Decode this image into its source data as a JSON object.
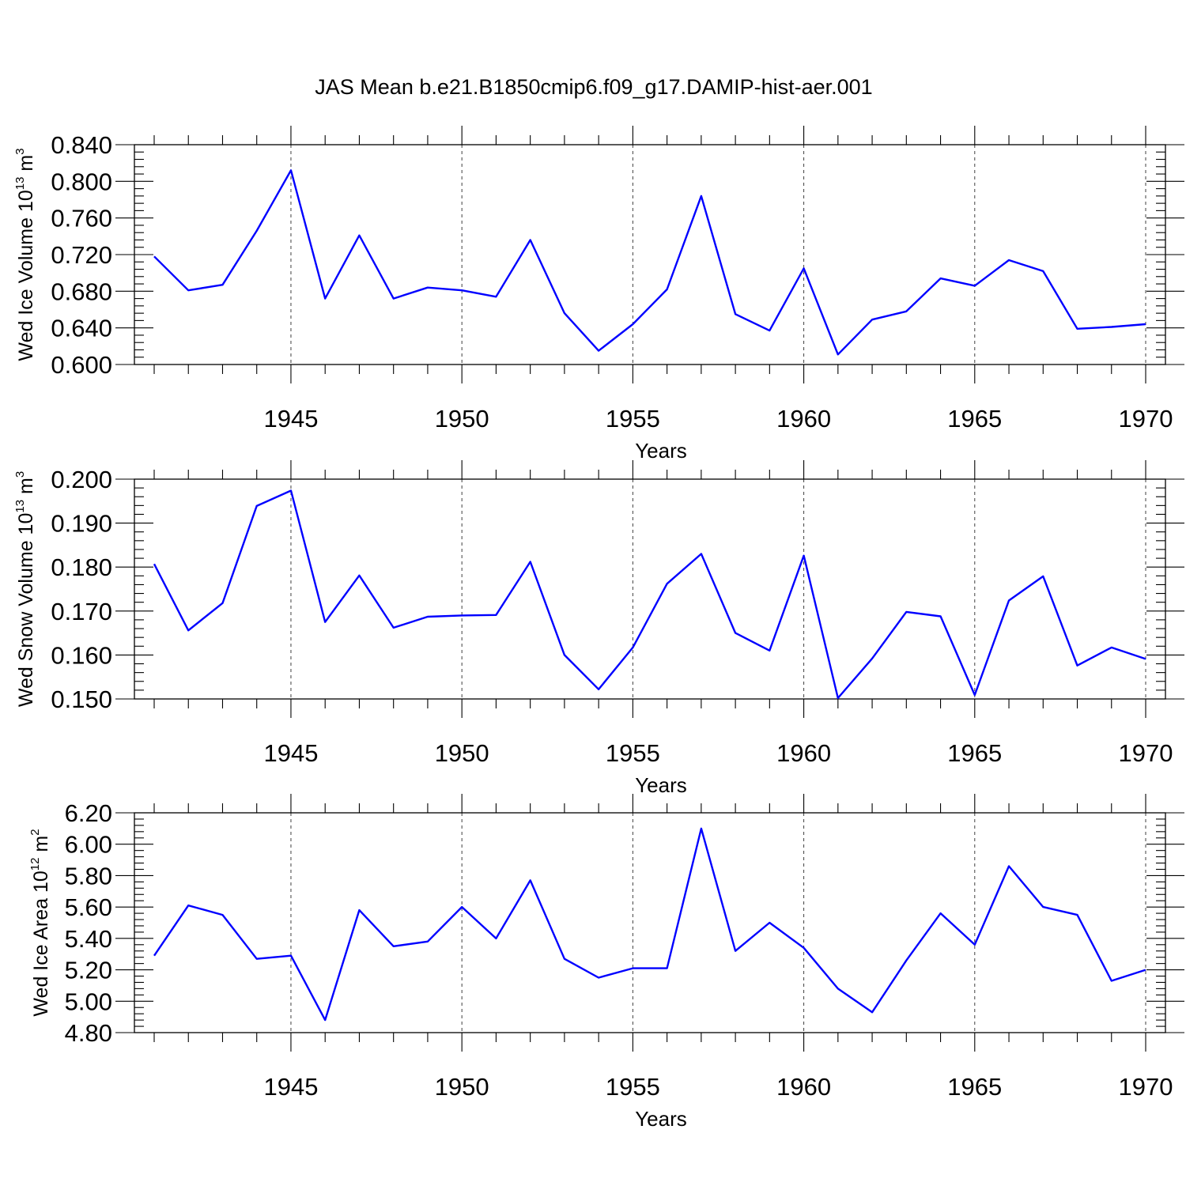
{
  "figure": {
    "title": "JAS Mean b.e21.B1850cmip6.f09_g17.DAMIP-hist-aer.001",
    "line_color": "#0000ff"
  },
  "chart_data": [
    {
      "type": "line",
      "ylabel": {
        "main": "Wed Ice Volume 10",
        "sup": "13",
        "unit": " m",
        "unit_sup": "3"
      },
      "xlabel": "Years",
      "xlim": [
        1941,
        1970
      ],
      "ylim": [
        0.6,
        0.84
      ],
      "yticks": [
        0.6,
        0.64,
        0.68,
        0.72,
        0.76,
        0.8,
        0.84
      ],
      "ytick_labels": [
        "0.600",
        "0.640",
        "0.680",
        "0.720",
        "0.760",
        "0.800",
        "0.840"
      ],
      "xticks": [
        1945,
        1950,
        1955,
        1960,
        1965,
        1970
      ],
      "xtick_labels": [
        "1945",
        "1950",
        "1955",
        "1960",
        "1965",
        "1970"
      ],
      "grid": "dashed vertical at major x ticks",
      "series": [
        {
          "name": "Wed Ice Volume",
          "x": [
            1941,
            1942,
            1943,
            1944,
            1945,
            1946,
            1947,
            1948,
            1949,
            1950,
            1951,
            1952,
            1953,
            1954,
            1955,
            1956,
            1957,
            1958,
            1959,
            1960,
            1961,
            1962,
            1963,
            1964,
            1965,
            1966,
            1967,
            1968,
            1969,
            1970
          ],
          "values": [
            0.718,
            0.681,
            0.687,
            0.746,
            0.812,
            0.672,
            0.741,
            0.672,
            0.684,
            0.681,
            0.674,
            0.736,
            0.656,
            0.615,
            0.644,
            0.682,
            0.784,
            0.655,
            0.637,
            0.705,
            0.611,
            0.649,
            0.658,
            0.694,
            0.686,
            0.714,
            0.702,
            0.639,
            0.641,
            0.644
          ]
        }
      ]
    },
    {
      "type": "line",
      "ylabel": {
        "main": "Wed Snow Volume 10",
        "sup": "13",
        "unit": " m",
        "unit_sup": "3"
      },
      "xlabel": "Years",
      "xlim": [
        1941,
        1970
      ],
      "ylim": [
        0.15,
        0.2
      ],
      "yticks": [
        0.15,
        0.16,
        0.17,
        0.18,
        0.19,
        0.2
      ],
      "ytick_labels": [
        "0.150",
        "0.160",
        "0.170",
        "0.180",
        "0.190",
        "0.200"
      ],
      "xticks": [
        1945,
        1950,
        1955,
        1960,
        1965,
        1970
      ],
      "xtick_labels": [
        "1945",
        "1950",
        "1955",
        "1960",
        "1965",
        "1970"
      ],
      "grid": "dashed vertical at major x ticks",
      "series": [
        {
          "name": "Wed Snow Volume",
          "x": [
            1941,
            1942,
            1943,
            1944,
            1945,
            1946,
            1947,
            1948,
            1949,
            1950,
            1951,
            1952,
            1953,
            1954,
            1955,
            1956,
            1957,
            1958,
            1959,
            1960,
            1961,
            1962,
            1963,
            1964,
            1965,
            1966,
            1967,
            1968,
            1969,
            1970
          ],
          "values": [
            0.1807,
            0.1656,
            0.1718,
            0.1939,
            0.1974,
            0.1675,
            0.1781,
            0.1662,
            0.1687,
            0.169,
            0.1691,
            0.1812,
            0.16,
            0.1522,
            0.1617,
            0.1762,
            0.183,
            0.165,
            0.161,
            0.1826,
            0.1502,
            0.1592,
            0.1698,
            0.1688,
            0.1509,
            0.1724,
            0.1779,
            0.1576,
            0.1617,
            0.1591
          ]
        }
      ]
    },
    {
      "type": "line",
      "ylabel": {
        "main": "Wed Ice Area 10",
        "sup": "12",
        "unit": " m",
        "unit_sup": "2"
      },
      "xlabel": "Years",
      "xlim": [
        1941,
        1970
      ],
      "ylim": [
        4.8,
        6.2
      ],
      "yticks": [
        4.8,
        5.0,
        5.2,
        5.4,
        5.6,
        5.8,
        6.0,
        6.2
      ],
      "ytick_labels": [
        "4.80",
        "5.00",
        "5.20",
        "5.40",
        "5.60",
        "5.80",
        "6.00",
        "6.20"
      ],
      "xticks": [
        1945,
        1950,
        1955,
        1960,
        1965,
        1970
      ],
      "xtick_labels": [
        "1945",
        "1950",
        "1955",
        "1960",
        "1965",
        "1970"
      ],
      "grid": "dashed vertical at major x ticks",
      "series": [
        {
          "name": "Wed Ice Area",
          "x": [
            1941,
            1942,
            1943,
            1944,
            1945,
            1946,
            1947,
            1948,
            1949,
            1950,
            1951,
            1952,
            1953,
            1954,
            1955,
            1956,
            1957,
            1958,
            1959,
            1960,
            1961,
            1962,
            1963,
            1964,
            1965,
            1966,
            1967,
            1968,
            1969,
            1970
          ],
          "values": [
            5.29,
            5.61,
            5.55,
            5.27,
            5.29,
            4.88,
            5.58,
            5.35,
            5.38,
            5.6,
            5.4,
            5.77,
            5.27,
            5.15,
            5.21,
            5.21,
            6.1,
            5.32,
            5.5,
            5.34,
            5.08,
            4.93,
            5.26,
            5.56,
            5.36,
            5.86,
            5.6,
            5.55,
            5.13,
            5.2
          ]
        }
      ]
    }
  ]
}
